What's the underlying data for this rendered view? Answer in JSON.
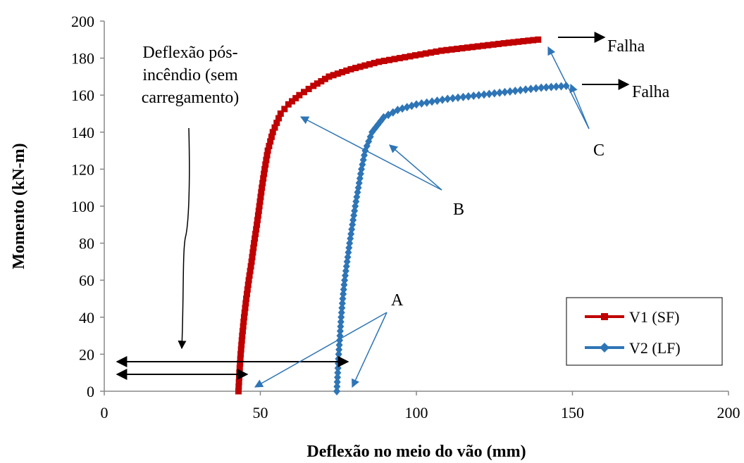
{
  "chart_data": {
    "type": "line",
    "title": "",
    "xlabel": "Deflexão no meio do vão (mm)",
    "ylabel": "Momento (kN-m)",
    "xlim": [
      0,
      200
    ],
    "ylim": [
      0,
      200
    ],
    "xticks": [
      0,
      50,
      100,
      150,
      200
    ],
    "yticks": [
      0,
      20,
      40,
      60,
      80,
      100,
      120,
      140,
      160,
      180,
      200
    ],
    "grid": false,
    "legend_position": "bottom-right",
    "series": [
      {
        "name": "V1 (SF)",
        "color": "#c00000",
        "marker": "square",
        "points": [
          [
            43.0,
            0
          ],
          [
            43.3,
            10
          ],
          [
            43.7,
            20
          ],
          [
            44.2,
            30
          ],
          [
            44.8,
            40
          ],
          [
            45.5,
            50
          ],
          [
            46.3,
            60
          ],
          [
            47.2,
            70
          ],
          [
            48.0,
            80
          ],
          [
            48.9,
            90
          ],
          [
            49.7,
            100
          ],
          [
            50.5,
            110
          ],
          [
            51.4,
            120
          ],
          [
            52.4,
            130
          ],
          [
            54.0,
            140
          ],
          [
            56.5,
            150
          ],
          [
            59.0,
            155
          ],
          [
            62.5,
            160
          ],
          [
            67.0,
            165
          ],
          [
            72.0,
            170
          ],
          [
            79.0,
            174
          ],
          [
            88.0,
            178
          ],
          [
            98.0,
            181
          ],
          [
            108.0,
            184
          ],
          [
            118.0,
            186
          ],
          [
            128.0,
            188
          ],
          [
            139.0,
            190
          ]
        ]
      },
      {
        "name": "V2 (LF)",
        "color": "#2e75b6",
        "marker": "diamond",
        "points": [
          [
            74.5,
            0
          ],
          [
            74.8,
            10
          ],
          [
            75.1,
            20
          ],
          [
            75.5,
            30
          ],
          [
            75.9,
            40
          ],
          [
            76.4,
            50
          ],
          [
            77.0,
            60
          ],
          [
            77.8,
            70
          ],
          [
            78.6,
            80
          ],
          [
            79.5,
            90
          ],
          [
            80.4,
            100
          ],
          [
            81.4,
            110
          ],
          [
            82.4,
            120
          ],
          [
            83.6,
            130
          ],
          [
            85.8,
            140
          ],
          [
            89.5,
            148
          ],
          [
            94.0,
            152
          ],
          [
            100.0,
            155
          ],
          [
            110.0,
            158
          ],
          [
            120.0,
            160
          ],
          [
            130.0,
            162
          ],
          [
            140.0,
            164
          ],
          [
            148.0,
            165
          ]
        ]
      }
    ],
    "annotations": {
      "deflection_label_line1": "Deflexão pós-",
      "deflection_label_line2": "incêndio (sem",
      "deflection_label_line3": "carregamento)",
      "failure_1": "Falha",
      "failure_2": "Falha",
      "label_a": "A",
      "label_b": "B",
      "label_c": "C"
    }
  }
}
